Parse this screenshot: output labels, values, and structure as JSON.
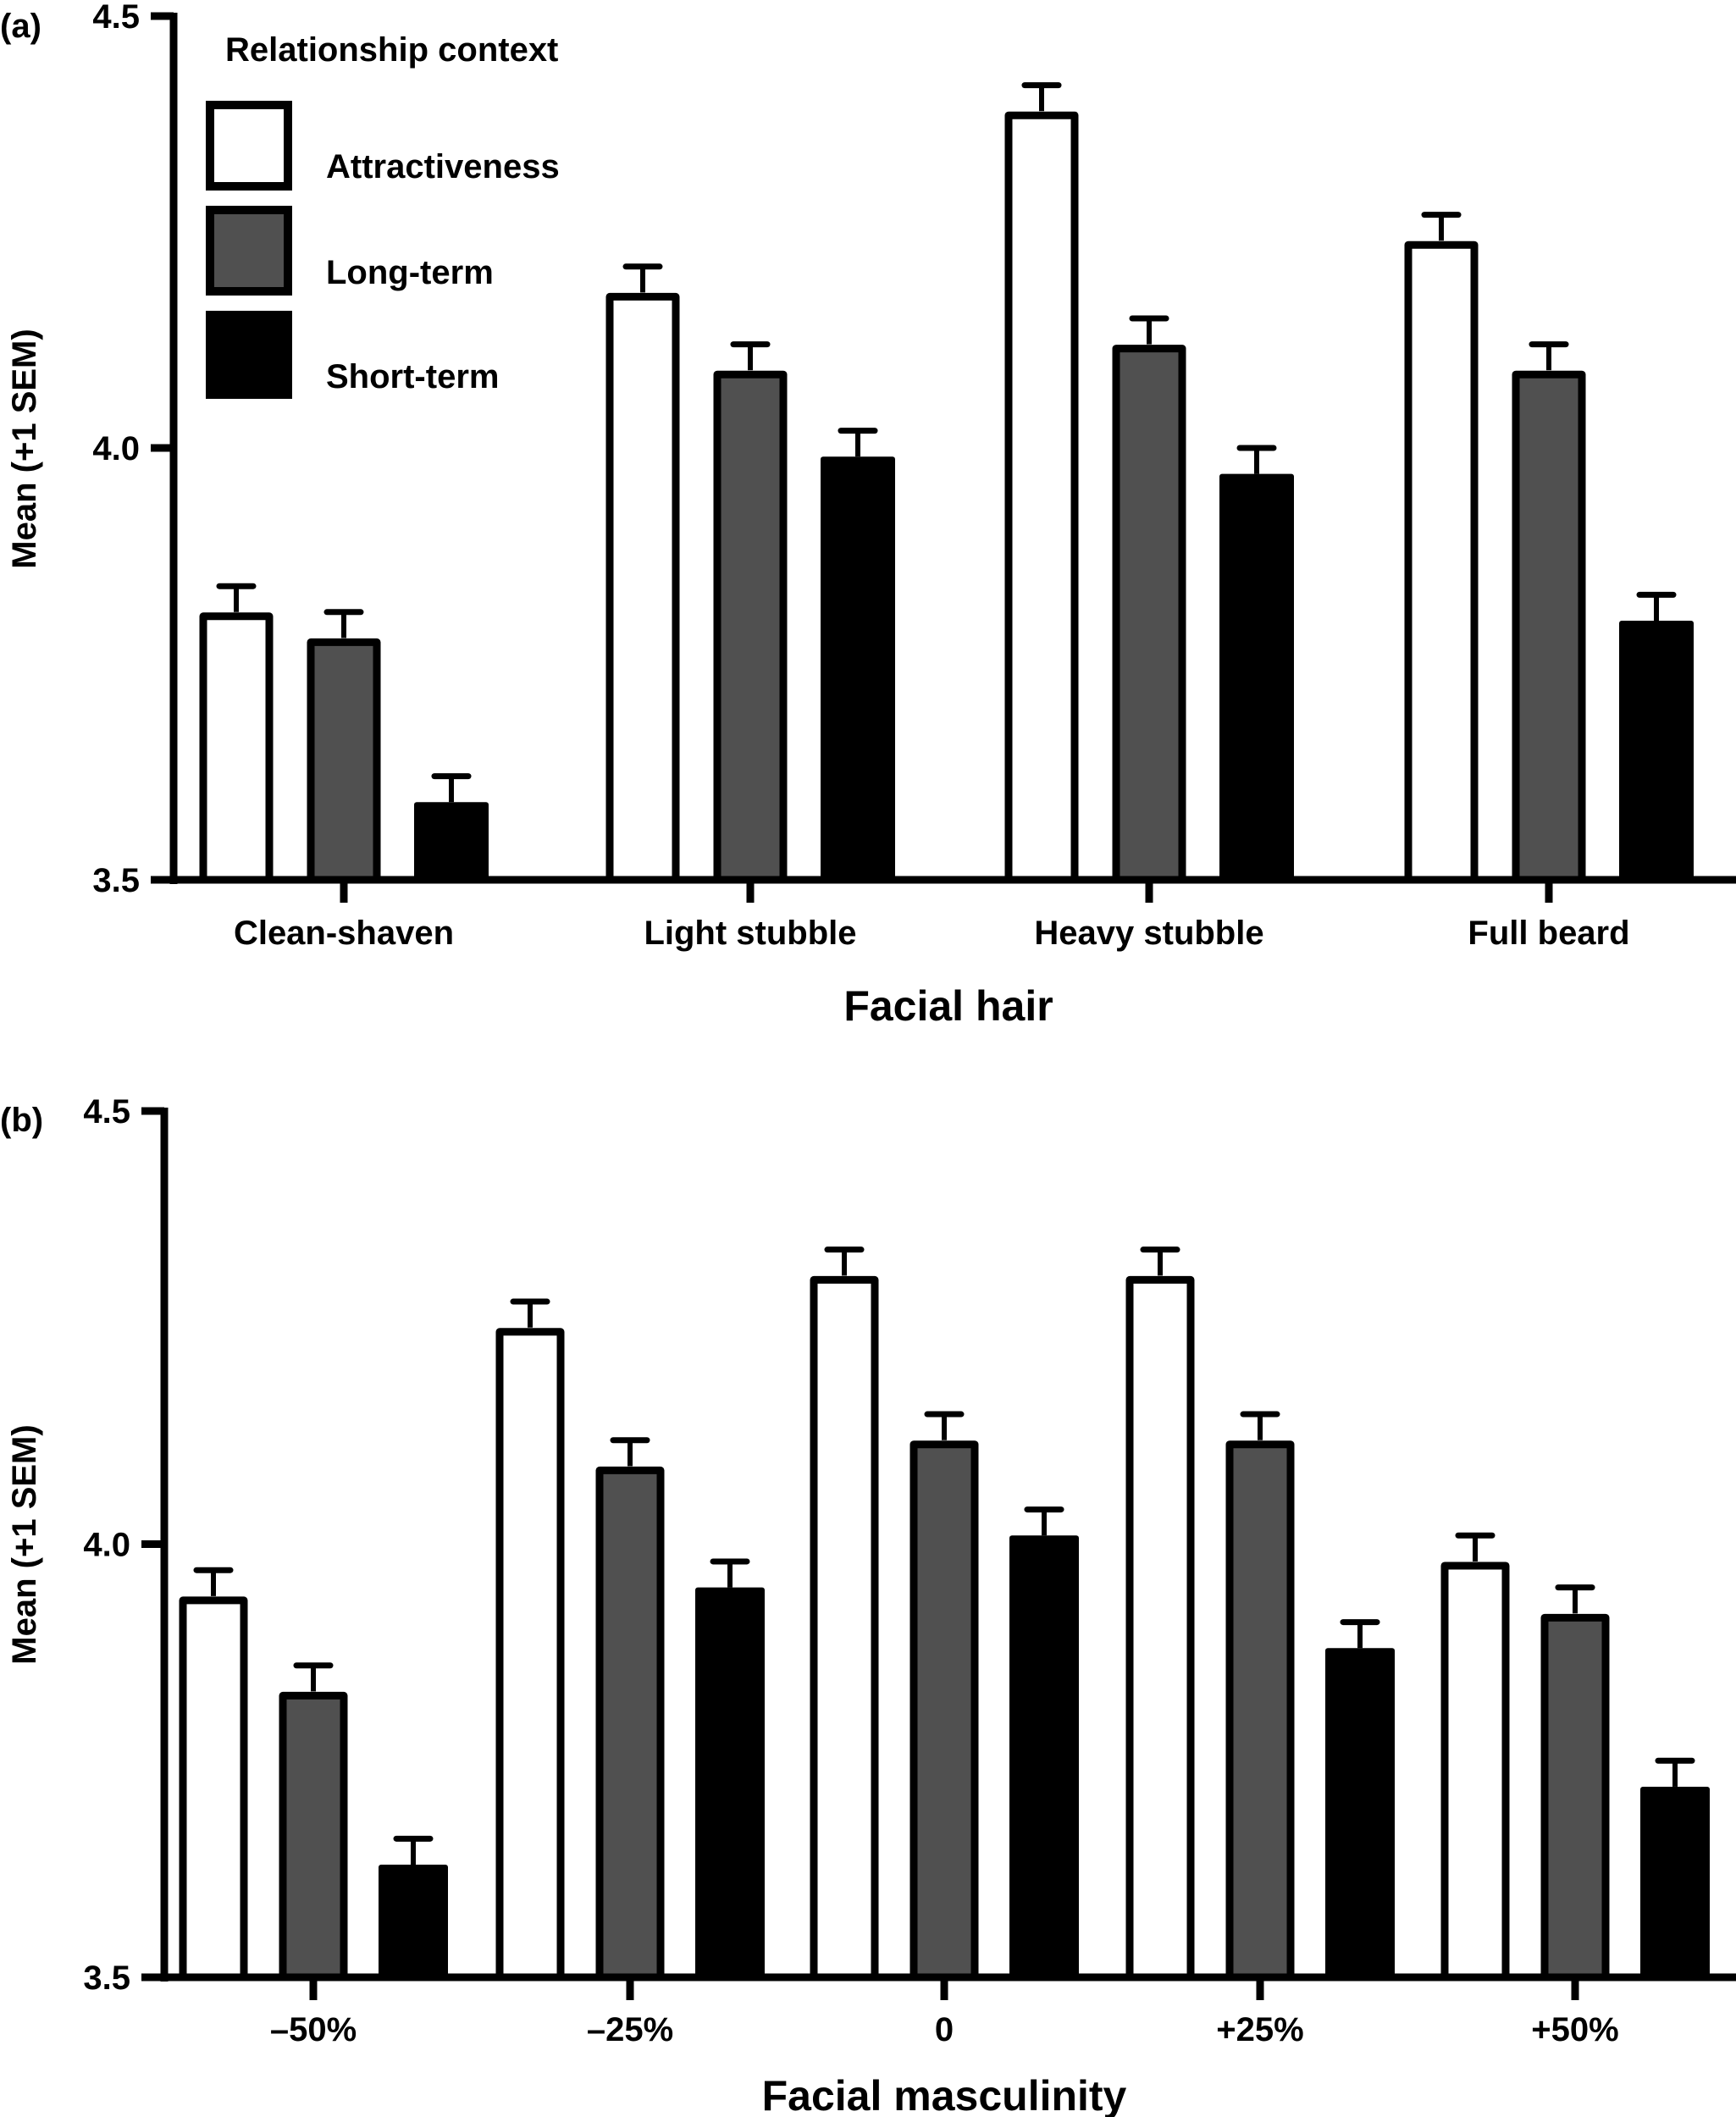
{
  "chart_data": [
    {
      "type": "bar",
      "panel_label": "(a)",
      "title": "",
      "xlabel": "Facial hair",
      "ylabel": "Mean (+1 SEM)",
      "ylim": [
        3.5,
        4.5
      ],
      "yticks": [
        "3.5",
        "4.0",
        "4.5"
      ],
      "ytick_values": [
        3.5,
        4.0,
        4.5
      ],
      "categories": [
        "Clean-shaven",
        "Light stubble",
        "Heavy stubble",
        "Full beard"
      ],
      "legend": {
        "title": "Relationship context",
        "placement": "top-left"
      },
      "series": [
        {
          "name": "Attractiveness",
          "color": "#ffffff",
          "values": [
            3.81,
            4.18,
            4.39,
            4.24
          ],
          "sem": [
            0.03,
            0.03,
            0.03,
            0.03
          ]
        },
        {
          "name": "Long-term",
          "color": "#505050",
          "values": [
            3.78,
            4.09,
            4.12,
            4.09
          ],
          "sem": [
            0.03,
            0.03,
            0.03,
            0.03
          ]
        },
        {
          "name": "Short-term",
          "color": "#000000",
          "values": [
            3.59,
            3.99,
            3.97,
            3.8
          ],
          "sem": [
            0.03,
            0.03,
            0.03,
            0.03
          ]
        }
      ]
    },
    {
      "type": "bar",
      "panel_label": "(b)",
      "title": "",
      "xlabel": "Facial masculinity",
      "ylabel": "Mean (+1 SEM)",
      "ylim": [
        3.5,
        4.5
      ],
      "yticks": [
        "3.5",
        "4.0",
        "4.5"
      ],
      "ytick_values": [
        3.5,
        4.0,
        4.5
      ],
      "categories": [
        "–50%",
        "–25%",
        "0",
        "+25%",
        "+50%"
      ],
      "series": [
        {
          "name": "Attractiveness",
          "color": "#ffffff",
          "values": [
            3.94,
            4.25,
            4.31,
            4.31,
            3.98
          ],
          "sem": [
            0.03,
            0.03,
            0.03,
            0.03,
            0.03
          ]
        },
        {
          "name": "Long-term",
          "color": "#505050",
          "values": [
            3.83,
            4.09,
            4.12,
            4.12,
            3.92
          ],
          "sem": [
            0.03,
            0.03,
            0.03,
            0.03,
            0.03
          ]
        },
        {
          "name": "Short-term",
          "color": "#000000",
          "values": [
            3.63,
            3.95,
            4.01,
            3.88,
            3.72
          ],
          "sem": [
            0.03,
            0.03,
            0.03,
            0.03,
            0.03
          ]
        }
      ]
    }
  ]
}
